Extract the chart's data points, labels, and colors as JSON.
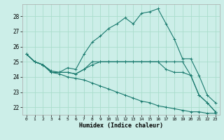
{
  "xlabel": "Humidex (Indice chaleur)",
  "bg_color": "#cceee8",
  "grid_color": "#aaddcc",
  "line_color": "#1a7a6e",
  "xlim": [
    -0.5,
    23.5
  ],
  "ylim": [
    21.5,
    28.8
  ],
  "yticks": [
    22,
    23,
    24,
    25,
    26,
    27,
    28
  ],
  "xticks": [
    0,
    1,
    2,
    3,
    4,
    5,
    6,
    7,
    8,
    9,
    10,
    11,
    12,
    13,
    14,
    15,
    16,
    17,
    18,
    19,
    20,
    21,
    22,
    23
  ],
  "series": [
    [
      25.5,
      25.0,
      24.8,
      24.4,
      24.3,
      24.6,
      24.5,
      25.5,
      26.3,
      26.7,
      27.2,
      27.5,
      27.9,
      27.5,
      28.2,
      28.3,
      28.5,
      27.5,
      26.5,
      25.2,
      25.2,
      24.1,
      22.8,
      22.3
    ],
    [
      25.5,
      25.0,
      24.8,
      24.3,
      24.3,
      24.3,
      24.2,
      24.5,
      25.0,
      25.0,
      25.0,
      25.0,
      25.0,
      25.0,
      25.0,
      25.0,
      25.0,
      25.0,
      25.0,
      25.0,
      24.1,
      22.8,
      22.3,
      21.7
    ],
    [
      25.5,
      25.0,
      24.8,
      24.3,
      24.3,
      24.3,
      24.2,
      24.5,
      24.8,
      25.0,
      25.0,
      25.0,
      25.0,
      25.0,
      25.0,
      25.0,
      25.0,
      24.5,
      24.3,
      24.3,
      24.1,
      22.8,
      22.3,
      21.7
    ],
    [
      25.5,
      25.0,
      24.8,
      24.3,
      24.2,
      24.0,
      23.9,
      23.8,
      23.6,
      23.4,
      23.2,
      23.0,
      22.8,
      22.6,
      22.4,
      22.3,
      22.1,
      22.0,
      21.9,
      21.8,
      21.7,
      21.7,
      21.6,
      21.6
    ]
  ]
}
